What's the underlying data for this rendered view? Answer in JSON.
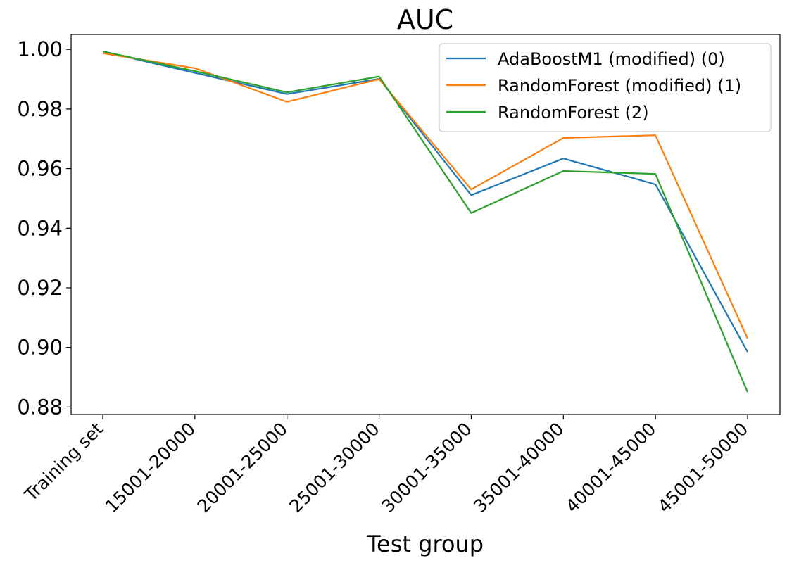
{
  "chart_data": {
    "type": "line",
    "title": "AUC",
    "xlabel": "Test group",
    "ylabel": "",
    "categories": [
      "Training set",
      "15001-20000",
      "20001-25000",
      "25001-30000",
      "30001-35000",
      "35001-40000",
      "40001-45000",
      "45001-50000"
    ],
    "ylim": [
      0.8775,
      1.005
    ],
    "yticks": [
      "0.88",
      "0.90",
      "0.92",
      "0.94",
      "0.96",
      "0.98",
      "1.00"
    ],
    "ytick_values": [
      0.88,
      0.9,
      0.92,
      0.94,
      0.96,
      0.98,
      1.0
    ],
    "grid": false,
    "legend_position": "top-right",
    "series": [
      {
        "name": "AdaBoostM1 (modified) (0)",
        "color": "#1f77b4",
        "values": [
          0.9993,
          0.9921,
          0.985,
          0.9901,
          0.9511,
          0.9634,
          0.9547,
          0.8985
        ]
      },
      {
        "name": "RandomForest (modified) (1)",
        "color": "#ff7f0e",
        "values": [
          0.9987,
          0.9937,
          0.9824,
          0.99,
          0.953,
          0.9703,
          0.9712,
          0.903
        ]
      },
      {
        "name": "RandomForest (2)",
        "color": "#2ca02c",
        "values": [
          0.9993,
          0.9927,
          0.9856,
          0.9909,
          0.9451,
          0.9592,
          0.9582,
          0.885
        ]
      }
    ]
  }
}
